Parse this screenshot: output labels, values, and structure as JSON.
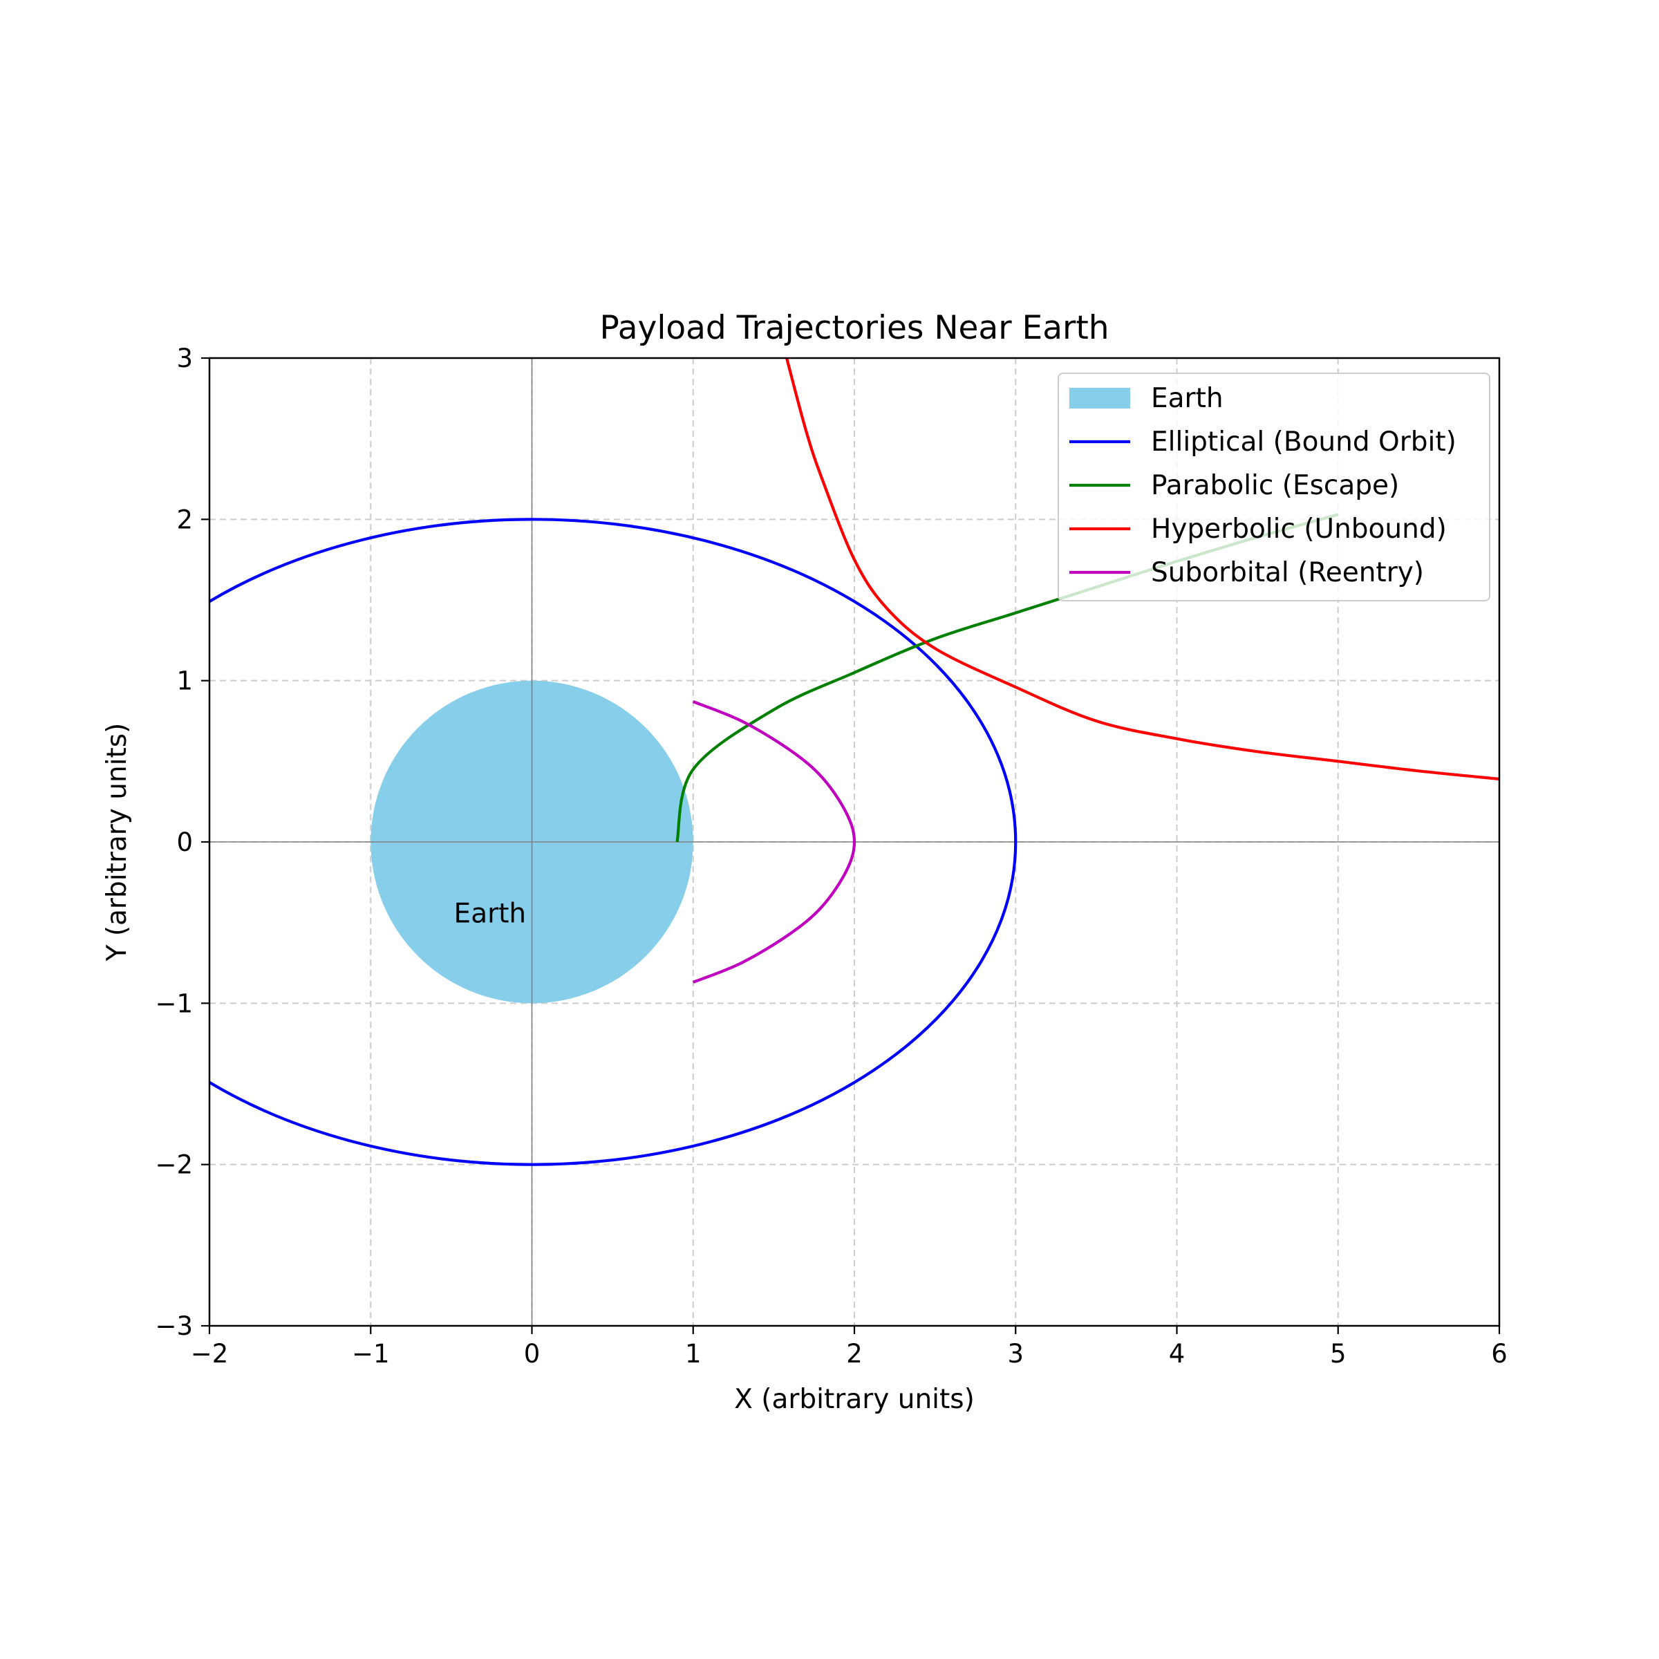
{
  "chart_data": {
    "type": "line",
    "title": "Payload Trajectories Near Earth",
    "xlabel": "X (arbitrary units)",
    "ylabel": "Y (arbitrary units)",
    "xlim": [
      -2,
      6
    ],
    "ylim": [
      -3,
      3
    ],
    "xticks": [
      -2,
      -1,
      0,
      1,
      2,
      3,
      4,
      5,
      6
    ],
    "yticks": [
      -3,
      -2,
      -1,
      0,
      1,
      2,
      3
    ],
    "xtick_labels": [
      "−2",
      "−1",
      "0",
      "1",
      "2",
      "3",
      "4",
      "5",
      "6"
    ],
    "ytick_labels": [
      "−3",
      "−2",
      "−1",
      "0",
      "1",
      "2",
      "3"
    ],
    "grid": true,
    "legend_position": "upper right",
    "earth": {
      "label": "Earth",
      "center": [
        0,
        0
      ],
      "radius": 1,
      "color": "#87CEEB",
      "annotation": "Earth"
    },
    "series": [
      {
        "name": "Elliptical (Bound Orbit)",
        "color": "#0000FF",
        "equation": "x = 3 cos t, y = 2 sin t",
        "x": [
          3.0,
          2.9,
          2.8,
          2.6,
          2.4,
          2.2,
          2.0,
          1.5,
          1.0,
          0.5,
          0.0,
          -0.5,
          -1.0,
          -1.5,
          -2.0
        ],
        "y": [
          0.0,
          0.51,
          0.72,
          1.0,
          1.2,
          1.36,
          1.49,
          1.73,
          1.89,
          1.97,
          2.0,
          1.97,
          1.89,
          1.73,
          1.49
        ]
      },
      {
        "name": "Parabolic (Escape)",
        "color": "#008000",
        "x": [
          0.9,
          1.0,
          1.5,
          2.0,
          2.5,
          3.0,
          3.5,
          4.0,
          4.5,
          5.0
        ],
        "y": [
          0.0,
          0.45,
          0.82,
          1.05,
          1.26,
          1.42,
          1.58,
          1.74,
          1.89,
          2.03
        ]
      },
      {
        "name": "Hyperbolic (Unbound)",
        "color": "#FF0000",
        "x": [
          1.58,
          1.7,
          1.8,
          2.0,
          2.2,
          2.5,
          3.0,
          3.5,
          4.0,
          4.5,
          5.0,
          5.5,
          6.0
        ],
        "y": [
          3.0,
          2.55,
          2.25,
          1.75,
          1.45,
          1.2,
          0.96,
          0.75,
          0.64,
          0.56,
          0.5,
          0.44,
          0.39
        ]
      },
      {
        "name": "Suborbital (Reentry)",
        "color": "#BF00BF",
        "x": [
          1.0,
          1.3,
          1.6,
          1.8,
          1.95,
          2.0,
          1.95,
          1.8,
          1.6,
          1.3,
          1.0
        ],
        "y": [
          0.87,
          0.75,
          0.57,
          0.4,
          0.18,
          0.0,
          -0.18,
          -0.4,
          -0.57,
          -0.75,
          -0.87
        ]
      }
    ]
  }
}
